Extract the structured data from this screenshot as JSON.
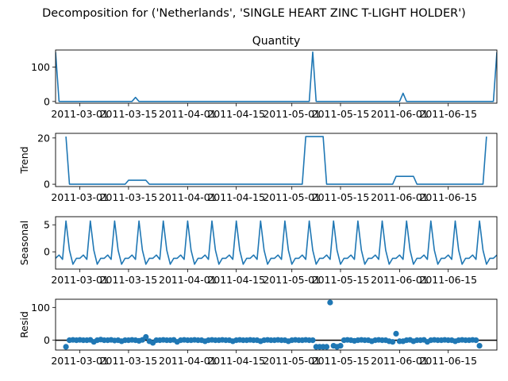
{
  "figure": {
    "suptitle": "Decomposition for ('Netherlands', 'SINGLE HEART ZINC T-LIGHT HOLDER')",
    "line_color": "#1f77b4"
  },
  "chart_data": [
    {
      "type": "line",
      "title": "Quantity",
      "ylabel": "",
      "ylim": [
        -5,
        150
      ],
      "yticks": [
        0,
        100
      ],
      "x_range": [
        "2011-02-22",
        "2011-06-29"
      ],
      "xtick_labels": [
        "2011-03-01",
        "2011-03-15",
        "2011-04-01",
        "2011-04-15",
        "2011-05-01",
        "2011-05-15",
        "2011-06-01",
        "2011-06-15"
      ],
      "points": [
        [
          "2011-02-22",
          144
        ],
        [
          "2011-02-23",
          0
        ],
        [
          "2011-03-16",
          0
        ],
        [
          "2011-03-17",
          12
        ],
        [
          "2011-03-18",
          0
        ],
        [
          "2011-05-06",
          0
        ],
        [
          "2011-05-07",
          144
        ],
        [
          "2011-05-08",
          0
        ],
        [
          "2011-06-01",
          0
        ],
        [
          "2011-06-02",
          24
        ],
        [
          "2011-06-03",
          0
        ],
        [
          "2011-06-28",
          0
        ],
        [
          "2011-06-29",
          144
        ]
      ]
    },
    {
      "type": "line",
      "title": "",
      "ylabel": "Trend",
      "ylim": [
        -1,
        22
      ],
      "yticks": [
        0,
        20
      ],
      "x_range": [
        "2011-02-22",
        "2011-06-29"
      ],
      "xtick_labels": [
        "2011-03-01",
        "2011-03-15",
        "2011-04-01",
        "2011-04-15",
        "2011-05-01",
        "2011-05-15",
        "2011-06-01",
        "2011-06-15"
      ],
      "points": [
        [
          "2011-02-25",
          20.6
        ],
        [
          "2011-02-26",
          0
        ],
        [
          "2011-03-14",
          0
        ],
        [
          "2011-03-15",
          1.7
        ],
        [
          "2011-03-20",
          1.7
        ],
        [
          "2011-03-21",
          0
        ],
        [
          "2011-05-04",
          0
        ],
        [
          "2011-05-05",
          20.6
        ],
        [
          "2011-05-10",
          20.6
        ],
        [
          "2011-05-11",
          0
        ],
        [
          "2011-05-30",
          0
        ],
        [
          "2011-05-31",
          3.4
        ],
        [
          "2011-06-05",
          3.4
        ],
        [
          "2011-06-06",
          0
        ],
        [
          "2011-06-25",
          0
        ],
        [
          "2011-06-26",
          20.6
        ]
      ]
    },
    {
      "type": "line",
      "title": "",
      "ylabel": "Seasonal",
      "ylim": [
        -3.2,
        6.5
      ],
      "yticks": [
        0,
        5
      ],
      "x_range": [
        "2011-02-22",
        "2011-06-29"
      ],
      "xtick_labels": [
        "2011-03-01",
        "2011-03-15",
        "2011-04-01",
        "2011-04-15",
        "2011-05-01",
        "2011-05-15",
        "2011-06-01",
        "2011-06-15"
      ],
      "period": 7,
      "series_start": "2011-02-22",
      "pattern": [
        -1.2,
        -0.6,
        -1.4,
        5.7,
        0.3,
        -2.3,
        -1.2
      ]
    },
    {
      "type": "scatter",
      "title": "",
      "ylabel": "Resid",
      "ylim": [
        -30,
        125
      ],
      "yticks": [
        0,
        100
      ],
      "zero_line": true,
      "x_range": [
        "2011-02-22",
        "2011-06-29"
      ],
      "xtick_labels": [
        "2011-03-01",
        "2011-03-15",
        "2011-04-01",
        "2011-04-15",
        "2011-05-01",
        "2011-05-15",
        "2011-06-01",
        "2011-06-15"
      ],
      "series_start": "2011-02-25",
      "values": [
        -20,
        0,
        1,
        0,
        1,
        0,
        0,
        1,
        -5,
        0,
        2,
        0,
        0,
        1,
        -1,
        0,
        -3,
        0,
        0,
        1,
        0,
        -2,
        1,
        10,
        -3,
        -8,
        0,
        0,
        1,
        0,
        0,
        1,
        -5,
        0,
        1,
        0,
        0,
        1,
        0,
        0,
        -3,
        0,
        1,
        0,
        0,
        1,
        0,
        0,
        -3,
        0,
        1,
        0,
        0,
        1,
        0,
        0,
        -3,
        0,
        1,
        0,
        0,
        1,
        0,
        0,
        -3,
        0,
        1,
        0,
        0,
        1,
        0,
        0,
        -20,
        -20,
        -20,
        -20,
        115,
        -17,
        -20,
        -17,
        0,
        1,
        0,
        -2,
        0,
        1,
        0,
        0,
        -3,
        0,
        1,
        0,
        0,
        -3,
        -5,
        20,
        -3,
        -3,
        0,
        1,
        -3,
        0,
        0,
        1,
        -5,
        0,
        1,
        0,
        0,
        1,
        0,
        0,
        -3,
        0,
        1,
        0,
        0,
        1,
        0,
        -17
      ]
    }
  ]
}
